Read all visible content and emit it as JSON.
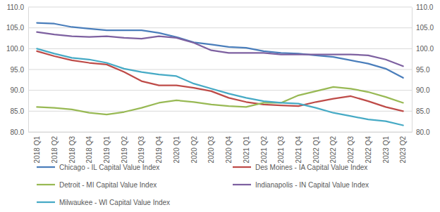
{
  "chart_data": {
    "type": "line",
    "categories": [
      "2018 Q1",
      "2018 Q2",
      "2018 Q3",
      "2018 Q4",
      "2019 Q1",
      "2019 Q2",
      "2019 Q3",
      "2019 Q4",
      "2020 Q1",
      "2020 Q2",
      "2020 Q3",
      "2020 Q4",
      "2021 Q1",
      "2021 Q2",
      "2021 Q3",
      "2021 Q4",
      "2022 Q1",
      "2022 Q2",
      "2022 Q3",
      "2022 Q4",
      "2023 Q1",
      "2023 Q2"
    ],
    "series": [
      {
        "name": "Chicago - IL Capital Value Index",
        "color": "#4a7ebb",
        "values": [
          106.2,
          106.0,
          105.2,
          104.8,
          104.4,
          104.4,
          104.4,
          103.8,
          102.8,
          101.5,
          101.0,
          100.4,
          100.2,
          99.4,
          99.0,
          98.8,
          98.4,
          98.0,
          97.2,
          96.4,
          95.2,
          93.0
        ]
      },
      {
        "name": "Des Moines - IA Capital Value Index",
        "color": "#be4b48",
        "values": [
          99.4,
          98.2,
          97.2,
          96.6,
          96.2,
          94.4,
          92.2,
          91.2,
          91.2,
          90.6,
          89.8,
          88.2,
          87.2,
          86.6,
          86.4,
          86.2,
          87.2,
          88.0,
          88.6,
          87.4,
          86.0,
          85.0
        ]
      },
      {
        "name": "Detroit - MI Capital Value Index",
        "color": "#98b954",
        "values": [
          86.0,
          85.8,
          85.4,
          84.6,
          84.2,
          84.8,
          85.8,
          87.0,
          87.6,
          87.2,
          86.6,
          86.2,
          86.0,
          87.0,
          87.0,
          88.8,
          89.8,
          90.8,
          90.4,
          89.6,
          88.4,
          87.0
        ]
      },
      {
        "name": "Indianapolis - IN Capital Value Index",
        "color": "#7d60a0",
        "values": [
          104.0,
          103.4,
          103.0,
          102.8,
          103.0,
          102.6,
          102.4,
          103.0,
          102.6,
          101.4,
          99.6,
          99.0,
          99.0,
          99.0,
          98.6,
          98.6,
          98.6,
          98.6,
          98.6,
          98.4,
          97.4,
          95.8
        ]
      },
      {
        "name": "Milwaukee - WI Capital Value Index",
        "color": "#46aac5",
        "values": [
          100.0,
          98.8,
          97.8,
          97.4,
          96.6,
          95.2,
          94.4,
          93.8,
          93.4,
          91.6,
          90.4,
          89.2,
          88.2,
          87.4,
          87.0,
          86.8,
          85.8,
          84.6,
          83.8,
          83.0,
          82.6,
          81.6
        ]
      }
    ],
    "ylim": [
      80,
      110
    ],
    "yticks": [
      {
        "value": 80,
        "label": "80.0"
      },
      {
        "value": 85,
        "label": "85.0"
      },
      {
        "value": 90,
        "label": "90.0"
      },
      {
        "value": 95,
        "label": "95.0"
      },
      {
        "value": 100,
        "label": "100.0"
      },
      {
        "value": 105,
        "label": "105.0"
      },
      {
        "value": 110,
        "label": "110.0"
      }
    ],
    "y2lim": [
      80,
      110
    ],
    "y2ticks": [
      {
        "value": 80,
        "label": "80.0"
      },
      {
        "value": 85,
        "label": "85.0"
      },
      {
        "value": 90,
        "label": "90.0"
      },
      {
        "value": 95,
        "label": "95.0"
      },
      {
        "value": 100,
        "label": "100.0"
      },
      {
        "value": 105,
        "label": "105.0"
      },
      {
        "value": 110,
        "label": "110.0"
      }
    ],
    "grid": true,
    "legend": "bottom"
  }
}
